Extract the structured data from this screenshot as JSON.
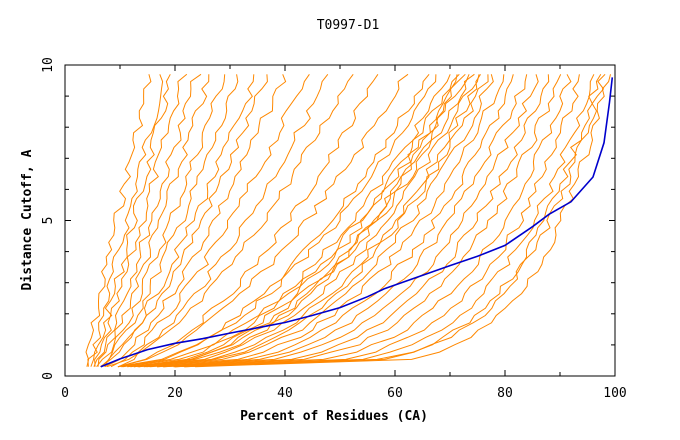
{
  "chart_data": {
    "type": "line",
    "title": "T0997-D1",
    "xlabel": "Percent of Residues (CA)",
    "ylabel": "Distance Cutoff, A",
    "xlim": [
      0,
      100
    ],
    "ylim": [
      0,
      10
    ],
    "x_ticks": [
      "0",
      "20",
      "40",
      "60",
      "80",
      "100"
    ],
    "y_ticks": [
      "0",
      "5",
      "10"
    ],
    "grid": false,
    "colors": {
      "highlight": "#0000cc",
      "other": "#ff8800"
    },
    "highlight_series": {
      "x": [
        6.5,
        10,
        15,
        20,
        25,
        30,
        35,
        40,
        45,
        50,
        55,
        58,
        62,
        66,
        70,
        75,
        80,
        85,
        88,
        92,
        96,
        98,
        99,
        99.5
      ],
      "y": [
        0.3,
        0.55,
        0.85,
        1.05,
        1.2,
        1.38,
        1.55,
        1.72,
        1.95,
        2.2,
        2.55,
        2.8,
        3.05,
        3.3,
        3.55,
        3.85,
        4.2,
        4.8,
        5.2,
        5.6,
        6.4,
        7.5,
        8.8,
        9.6
      ]
    },
    "other_series_params": [
      {
        "a": 4.0,
        "b": 15.5,
        "p": 1.1
      },
      {
        "a": 4.5,
        "b": 18.0,
        "p": 1.0
      },
      {
        "a": 5.0,
        "b": 19.5,
        "p": 0.95
      },
      {
        "a": 5.5,
        "b": 21.5,
        "p": 0.9
      },
      {
        "a": 5.0,
        "b": 24.0,
        "p": 0.85
      },
      {
        "a": 6.0,
        "b": 26.5,
        "p": 0.85
      },
      {
        "a": 6.0,
        "b": 29.0,
        "p": 0.8
      },
      {
        "a": 6.5,
        "b": 32.0,
        "p": 0.8
      },
      {
        "a": 7.0,
        "b": 35.0,
        "p": 0.78
      },
      {
        "a": 7.0,
        "b": 37.0,
        "p": 0.75
      },
      {
        "a": 8.0,
        "b": 40.0,
        "p": 0.75
      },
      {
        "a": 8.0,
        "b": 44.0,
        "p": 0.7
      },
      {
        "a": 9.0,
        "b": 48.0,
        "p": 0.7
      },
      {
        "a": 8.0,
        "b": 52.0,
        "p": 0.65
      },
      {
        "a": 9.0,
        "b": 57.0,
        "p": 0.6
      },
      {
        "a": 9.0,
        "b": 62.0,
        "p": 0.6
      },
      {
        "a": 10.0,
        "b": 66.0,
        "p": 0.55
      },
      {
        "a": 10.0,
        "b": 68.0,
        "p": 0.55
      },
      {
        "a": 11.0,
        "b": 70.0,
        "p": 0.52
      },
      {
        "a": 11.0,
        "b": 71.0,
        "p": 0.5
      },
      {
        "a": 12.0,
        "b": 72.0,
        "p": 0.5
      },
      {
        "a": 12.0,
        "b": 73.0,
        "p": 0.48
      },
      {
        "a": 12.0,
        "b": 74.0,
        "p": 0.47
      },
      {
        "a": 13.0,
        "b": 72.0,
        "p": 0.45
      },
      {
        "a": 13.0,
        "b": 75.0,
        "p": 0.45
      },
      {
        "a": 14.0,
        "b": 76.0,
        "p": 0.43
      },
      {
        "a": 14.0,
        "b": 77.0,
        "p": 0.42
      },
      {
        "a": 15.0,
        "b": 78.0,
        "p": 0.4
      },
      {
        "a": 15.0,
        "b": 80.0,
        "p": 0.38
      },
      {
        "a": 16.0,
        "b": 82.0,
        "p": 0.36
      },
      {
        "a": 16.0,
        "b": 84.0,
        "p": 0.34
      },
      {
        "a": 17.0,
        "b": 86.0,
        "p": 0.32
      },
      {
        "a": 18.0,
        "b": 88.0,
        "p": 0.3
      },
      {
        "a": 18.0,
        "b": 90.0,
        "p": 0.28
      },
      {
        "a": 19.0,
        "b": 92.0,
        "p": 0.26
      },
      {
        "a": 20.0,
        "b": 94.0,
        "p": 0.24
      },
      {
        "a": 20.0,
        "b": 96.0,
        "p": 0.22
      },
      {
        "a": 21.0,
        "b": 97.0,
        "p": 0.2
      },
      {
        "a": 22.0,
        "b": 98.0,
        "p": 0.2
      },
      {
        "a": 24.0,
        "b": 99.0,
        "p": 0.18
      }
    ]
  }
}
